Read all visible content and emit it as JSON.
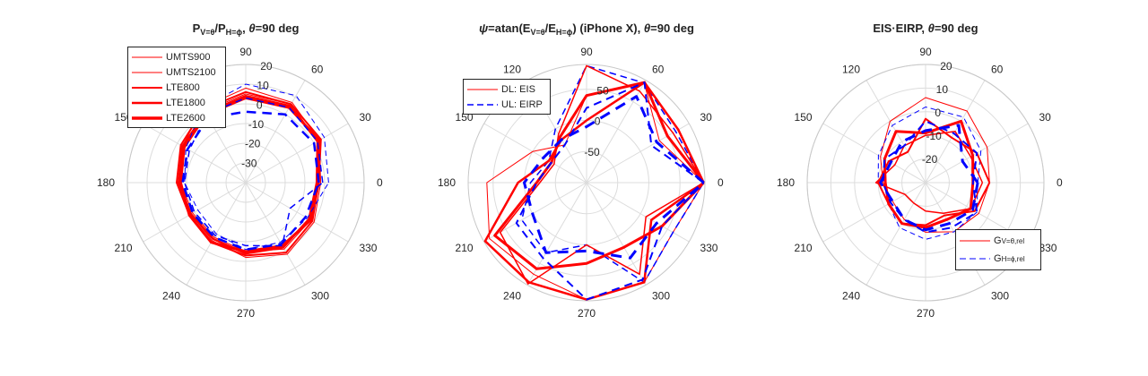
{
  "chart_data": [
    {
      "type": "polar-line",
      "title_parts": [
        "P",
        "V=θ",
        "/P",
        "H=ϕ",
        ", ",
        "θ",
        "=90 deg"
      ],
      "r_range": [
        -40,
        20
      ],
      "r_ticks": [
        -30,
        -20,
        -10,
        0,
        10,
        20
      ],
      "theta_ticks": [
        0,
        30,
        60,
        90,
        120,
        150,
        180,
        210,
        240,
        270,
        300,
        330
      ],
      "grid": true,
      "legend_position": "top-left",
      "series": [
        {
          "name": "UMTS900",
          "color": "#ff0000",
          "width": 1,
          "dash": "solid",
          "theta": [
            0,
            30,
            60,
            90,
            120,
            150,
            180,
            210,
            240,
            270,
            300,
            330,
            360
          ],
          "r": [
            -2,
            3,
            7,
            8,
            4,
            -3,
            -6,
            -8,
            -6,
            -2,
            2,
            0,
            -2
          ]
        },
        {
          "name": "UMTS2100",
          "color": "#ff0000",
          "width": 1,
          "dash": "solid",
          "theta": [
            0,
            30,
            60,
            90,
            120,
            150,
            180,
            210,
            240,
            270,
            300,
            330,
            360
          ],
          "r": [
            -3,
            2,
            6,
            5,
            2,
            -4,
            -7,
            -9,
            -8,
            -5,
            -1,
            -2,
            -3
          ]
        },
        {
          "name": "LTE800",
          "color": "#ff0000",
          "width": 2,
          "dash": "solid",
          "theta": [
            0,
            30,
            60,
            90,
            120,
            150,
            180,
            210,
            240,
            270,
            300,
            330,
            360
          ],
          "r": [
            -3,
            4,
            6,
            6,
            3,
            -2,
            -5,
            -7,
            -5,
            -3,
            1,
            -1,
            -3
          ]
        },
        {
          "name": "LTE1800",
          "color": "#ff0000",
          "width": 2.5,
          "dash": "solid",
          "theta": [
            0,
            30,
            60,
            90,
            120,
            150,
            180,
            210,
            240,
            270,
            300,
            330,
            360
          ],
          "r": [
            -4,
            2,
            5,
            4,
            1,
            -3,
            -6,
            -8,
            -7,
            -4,
            -2,
            -3,
            -4
          ]
        },
        {
          "name": "LTE2600",
          "color": "#ff0000",
          "width": 3,
          "dash": "solid",
          "theta": [
            0,
            30,
            60,
            90,
            120,
            150,
            180,
            210,
            240,
            270,
            300,
            330,
            360
          ],
          "r": [
            -3,
            3,
            4,
            3,
            0,
            -4,
            -7,
            -7,
            -5,
            -5,
            -3,
            -2,
            -3
          ]
        },
        {
          "color": "#0000ff",
          "width": 1,
          "dash": "dashed",
          "theta": [
            0,
            30,
            60,
            90,
            120,
            150,
            180,
            210,
            240,
            270,
            300,
            330,
            360
          ],
          "r": [
            2,
            6,
            11,
            10,
            4,
            -5,
            -9,
            -12,
            -10,
            -6,
            -5,
            -4,
            2
          ]
        },
        {
          "color": "#0000ff",
          "width": 1.5,
          "dash": "dashed",
          "theta": [
            0,
            30,
            60,
            90,
            120,
            150,
            180,
            210,
            240,
            270,
            300,
            330,
            360
          ],
          "r": [
            -1,
            2,
            4,
            3,
            0,
            -7,
            -9,
            -10,
            -9,
            -8,
            -3,
            -14,
            -1
          ]
        },
        {
          "color": "#0000ff",
          "width": 2.5,
          "dash": "dashed",
          "theta": [
            0,
            30,
            60,
            90,
            120,
            150,
            180,
            210,
            240,
            270,
            300,
            330,
            360
          ],
          "r": [
            -3,
            0,
            0,
            -4,
            -2,
            -6,
            -8,
            -9,
            -8,
            -6,
            -4,
            -5,
            -3
          ]
        }
      ]
    },
    {
      "type": "polar-line",
      "title_parts": [
        "ψ",
        "=atan(E",
        "V=θ",
        "/E",
        "H=ϕ",
        ") (iPhone X), ",
        "θ",
        "=90 deg"
      ],
      "r_range": [
        -100,
        90
      ],
      "r_ticks": [
        -50,
        0,
        50
      ],
      "theta_ticks": [
        0,
        30,
        60,
        90,
        120,
        150,
        180,
        210,
        240,
        270,
        300,
        330
      ],
      "grid": true,
      "legend_position": "top-left",
      "series": [
        {
          "name": "DL: EIS",
          "color": "#ff0000",
          "width": 1,
          "dash": "solid",
          "theta": [
            0,
            30,
            60,
            90,
            120,
            150,
            180,
            210,
            240,
            270,
            300,
            330,
            360
          ],
          "r": [
            88,
            35,
            85,
            40,
            -30,
            0,
            60,
            80,
            70,
            88,
            85,
            60,
            88
          ]
        },
        {
          "name": "UL: EIRP",
          "color": "#0000ff",
          "width": 1.5,
          "dash": "dashed",
          "theta": [
            0,
            30,
            60,
            90,
            120,
            150,
            180,
            210,
            240,
            270,
            300,
            330,
            360
          ],
          "r": [
            88,
            65,
            85,
            88,
            0,
            -30,
            -10,
            20,
            30,
            0,
            85,
            60,
            88
          ]
        },
        {
          "color": "#ff0000",
          "width": 1.5,
          "dash": "solid",
          "theta": [
            0,
            30,
            60,
            90,
            120,
            150,
            180,
            210,
            240,
            270,
            300,
            330,
            360
          ],
          "r": [
            88,
            60,
            70,
            88,
            -10,
            -40,
            -25,
            60,
            88,
            0,
            70,
            10,
            88
          ]
        },
        {
          "color": "#ff0000",
          "width": 2.5,
          "dash": "solid",
          "theta": [
            0,
            30,
            60,
            90,
            120,
            150,
            180,
            210,
            240,
            270,
            300,
            330,
            360
          ],
          "r": [
            88,
            70,
            86,
            0,
            -20,
            -30,
            10,
            88,
            85,
            88,
            85,
            20,
            88
          ]
        },
        {
          "color": "#ff0000",
          "width": 3,
          "dash": "solid",
          "theta": [
            0,
            30,
            60,
            90,
            120,
            150,
            180,
            210,
            240,
            270,
            300,
            330,
            360
          ],
          "r": [
            88,
            50,
            86,
            40,
            -15,
            -35,
            -20,
            70,
            60,
            30,
            20,
            40,
            88
          ]
        },
        {
          "color": "#0000ff",
          "width": 2,
          "dash": "dashed",
          "theta": [
            0,
            30,
            60,
            90,
            120,
            150,
            180,
            210,
            240,
            270,
            300,
            330,
            360
          ],
          "r": [
            88,
            20,
            86,
            20,
            -30,
            -35,
            -20,
            30,
            40,
            88,
            80,
            40,
            88
          ]
        },
        {
          "color": "#0000ff",
          "width": 3,
          "dash": "dashed",
          "theta": [
            0,
            30,
            60,
            90,
            120,
            150,
            180,
            210,
            240,
            270,
            300,
            330,
            360
          ],
          "r": [
            88,
            30,
            60,
            -10,
            -20,
            -20,
            0,
            0,
            30,
            10,
            40,
            30,
            88
          ]
        }
      ]
    },
    {
      "type": "polar-line",
      "title_parts": [
        "EIS·EIRP, ",
        "θ",
        "=90 deg"
      ],
      "r_range": [
        -30,
        20
      ],
      "r_ticks": [
        -20,
        -10,
        0,
        10,
        20
      ],
      "theta_ticks": [
        0,
        30,
        60,
        90,
        120,
        150,
        180,
        210,
        240,
        270,
        300,
        330
      ],
      "grid": true,
      "legend_position": "bottom-right",
      "series": [
        {
          "name": "G",
          "name_sub": "V=θ,rel",
          "color": "#ff0000",
          "width": 1,
          "dash": "solid",
          "theta": [
            0,
            30,
            60,
            90,
            120,
            150,
            180,
            210,
            240,
            270,
            300,
            330,
            360
          ],
          "r": [
            -3,
            0,
            5,
            6,
            0,
            -8,
            -12,
            -14,
            -12,
            -9,
            -6,
            -4,
            -3
          ]
        },
        {
          "name": "G",
          "name_sub": "H=ϕ,rel",
          "color": "#0000ff",
          "width": 1,
          "dash": "dashed",
          "theta": [
            0,
            30,
            60,
            90,
            120,
            150,
            180,
            210,
            240,
            270,
            300,
            330,
            360
          ],
          "r": [
            -8,
            -3,
            2,
            2,
            -2,
            -7,
            -10,
            -12,
            -8,
            -6,
            -6,
            -5,
            -8
          ]
        },
        {
          "color": "#ff0000",
          "width": 1.5,
          "dash": "solid",
          "theta": [
            0,
            30,
            60,
            90,
            120,
            150,
            180,
            210,
            240,
            270,
            300,
            330,
            360
          ],
          "r": [
            -6,
            -8,
            -5,
            -10,
            -12,
            -15,
            -9,
            -20,
            -20,
            -18,
            -15,
            -8,
            -6
          ]
        },
        {
          "color": "#ff0000",
          "width": 2,
          "dash": "solid",
          "theta": [
            0,
            30,
            60,
            90,
            120,
            150,
            180,
            210,
            240,
            270,
            300,
            330,
            360
          ],
          "r": [
            -3,
            -5,
            -8,
            -3,
            -15,
            -12,
            -10,
            -12,
            -10,
            -12,
            -14,
            -6,
            -3
          ]
        },
        {
          "color": "#ff0000",
          "width": 3,
          "dash": "solid",
          "theta": [
            0,
            30,
            60,
            90,
            120,
            150,
            180,
            210,
            240,
            270,
            300,
            330,
            360
          ],
          "r": [
            -10,
            -7,
            0,
            -9,
            -5,
            -10,
            -13,
            -12,
            -10,
            -11,
            -12,
            -8,
            -10
          ]
        },
        {
          "color": "#0000ff",
          "width": 2,
          "dash": "dashed",
          "theta": [
            0,
            30,
            60,
            90,
            120,
            150,
            180,
            210,
            240,
            270,
            300,
            330,
            360
          ],
          "r": [
            -10,
            -5,
            -6,
            -4,
            -12,
            -10,
            -12,
            -13,
            -12,
            -9,
            -8,
            -5,
            -10
          ]
        },
        {
          "color": "#0000ff",
          "width": 3,
          "dash": "dashed",
          "theta": [
            0,
            30,
            60,
            90,
            120,
            150,
            180,
            210,
            240,
            270,
            300,
            330,
            360
          ],
          "r": [
            -8,
            -12,
            -2,
            -8,
            -10,
            -13,
            -11,
            -14,
            -12,
            -10,
            -10,
            -7,
            -8
          ]
        }
      ]
    }
  ]
}
